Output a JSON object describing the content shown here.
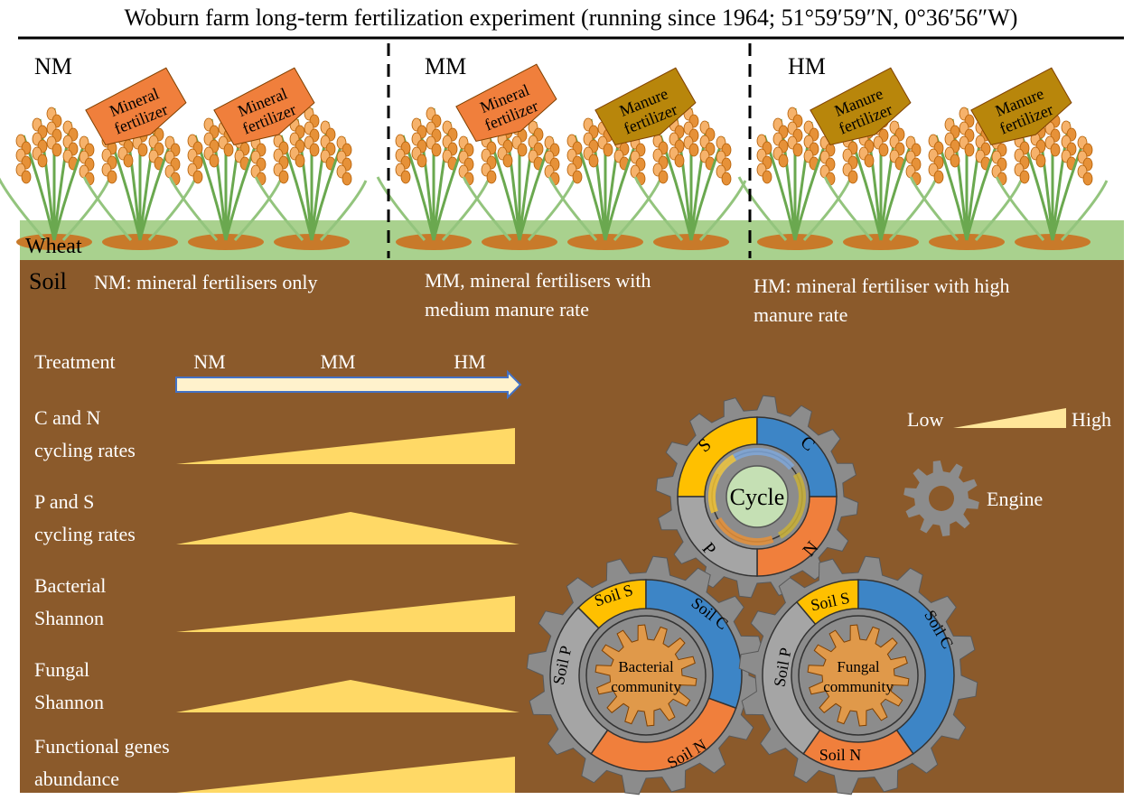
{
  "title": "Woburn farm long-term fertilization experiment (running since 1964; 51°59′59″N, 0°36′56″W)",
  "plots": [
    {
      "code": "NM",
      "tags": [
        "Mineral fertilizer",
        "Mineral fertilizer"
      ],
      "tag_kinds": [
        "mineral",
        "mineral"
      ],
      "description": [
        "NM: mineral fertilisers only"
      ]
    },
    {
      "code": "MM",
      "tags": [
        "Mineral fertilizer",
        "Manure fertilizer"
      ],
      "tag_kinds": [
        "mineral",
        "manure"
      ],
      "description": [
        "MM, mineral fertilisers with",
        "medium manure rate"
      ]
    },
    {
      "code": "HM",
      "tags": [
        "Manure fertilizer",
        "Manure fertilizer"
      ],
      "tag_kinds": [
        "manure",
        "manure"
      ],
      "description": [
        "HM: mineral fertiliser with high",
        "manure rate"
      ]
    }
  ],
  "layer_labels": {
    "wheat": "Wheat",
    "soil": "Soil"
  },
  "treatment": {
    "label": "Treatment",
    "levels": [
      "NM",
      "MM",
      "HM"
    ]
  },
  "trends": [
    {
      "label": [
        "C and N",
        "cycling rates"
      ],
      "shape": "increasing"
    },
    {
      "label": [
        "P and S",
        "cycling rates"
      ],
      "shape": "peak"
    },
    {
      "label": [
        "Bacterial",
        "Shannon"
      ],
      "shape": "increasing"
    },
    {
      "label": [
        "Fungal",
        "Shannon"
      ],
      "shape": "peak"
    },
    {
      "label": [
        "Functional genes",
        "abundance"
      ],
      "shape": "increasing"
    }
  ],
  "legend": {
    "low": "Low",
    "high": "High",
    "engine": "Engine"
  },
  "gears": {
    "cycle": {
      "center": "Cycle",
      "labels": [
        "S",
        "C",
        "N",
        "P"
      ]
    },
    "bacterial": {
      "center": [
        "Bacterial",
        "community"
      ],
      "labels": [
        "Soil S",
        "Soil C",
        "Soil N",
        "Soil P"
      ]
    },
    "fungal": {
      "center": [
        "Fungal",
        "community"
      ],
      "labels": [
        "Soil S",
        "Soil C",
        "Soil N",
        "Soil P"
      ]
    }
  },
  "colors": {
    "soil": "#8b5a2b",
    "wheat_band": "#a9d18e",
    "mineral_tag": "#f07f3c",
    "manure_tag": "#b8860b",
    "wedge": "#ffd966",
    "gear": "#8c8c8c",
    "s_arc": "#ffc000",
    "c_arc": "#3d85c6",
    "n_arc": "#f07f3c",
    "p_arc": "#a5a5a5",
    "community": "#e0994a",
    "cycle_center": "#c5e0b4"
  }
}
